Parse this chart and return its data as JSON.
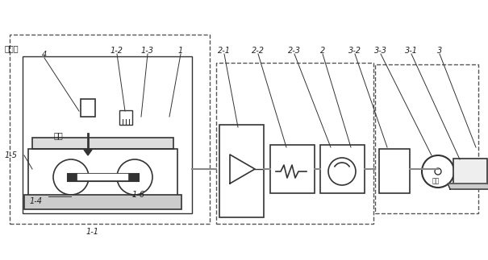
{
  "title": "",
  "bg_color": "#ffffff",
  "line_color": "#333333",
  "dashed_color": "#555555",
  "label_color": "#222222",
  "labels": {
    "stirrer": "搅拌头",
    "workpiece": "工件",
    "l4": "1-4",
    "l5": "1-5",
    "l6": "1-6",
    "l11": "1-1",
    "l12": "1-2",
    "l13": "1-3",
    "l1": "1",
    "l21": "2-1",
    "l22": "2-2",
    "l23": "2-3",
    "l2": "2",
    "l32": "3-2",
    "l33": "3-3",
    "l31": "3-1",
    "l3": "3",
    "insert": "插入"
  }
}
